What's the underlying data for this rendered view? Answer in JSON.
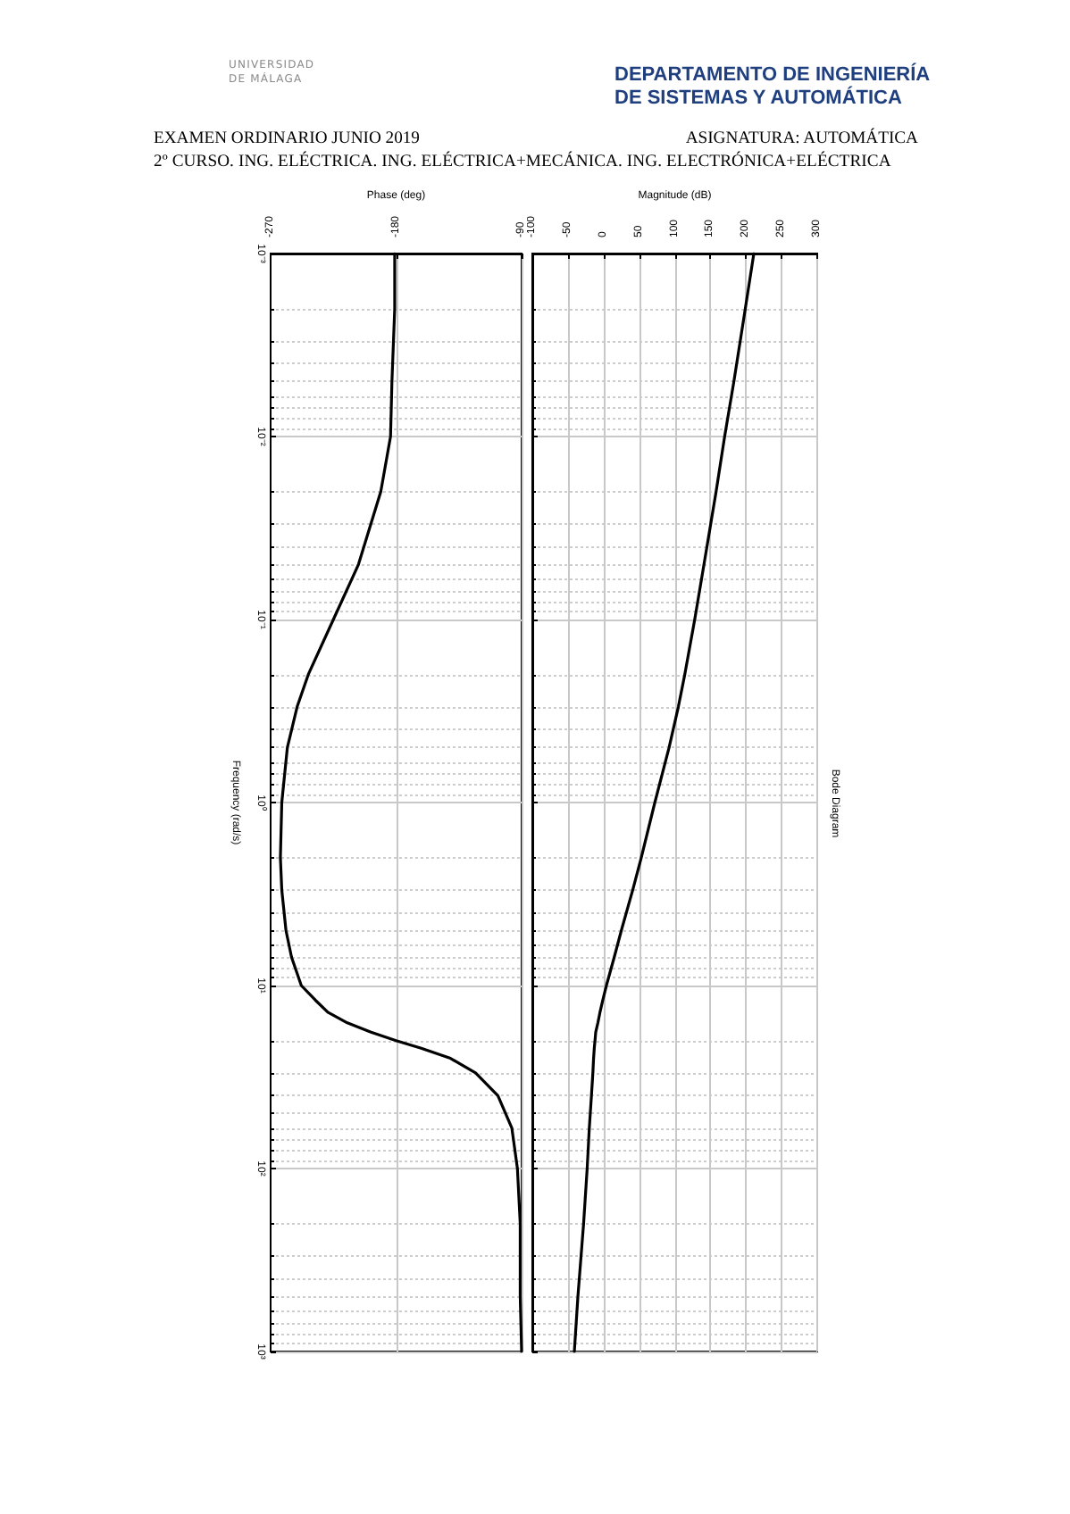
{
  "chart_data": [
    {
      "type": "line",
      "xlabel": "Phase (deg)",
      "ylabel": "Frequency (rad/s)",
      "annotations": [
        "UNIVERSIDAD DE MÁLAGA",
        "DEPARTAMENTO DE INGENIERÍA DE SISTEMAS Y AUTOMÁTICA",
        "EXAMEN ORDINARIO JUNIO 2019",
        "ASIGNATURA: AUTOMÁTICA",
        "2º CURSO. ING. ELÉCTRICA. ING. ELÉCTRICA+MECÁNICA. ING. ELECTRÓNICA+ELÉCTRICA"
      ],
      "x": [
        -181,
        -181,
        -183,
        -184,
        -191,
        -207,
        -225,
        -243,
        -251,
        -258,
        -262,
        -263,
        -262,
        -259,
        -255,
        -248,
        -238,
        -229,
        -215,
        -198,
        -180,
        -162,
        -141,
        -123,
        -107,
        -97,
        -93,
        -91,
        -91,
        -90
      ],
      "series": [
        {
          "color": "#000000",
          "values": [
            0.001,
            0.002,
            0.005,
            0.01,
            0.02,
            0.05,
            0.1,
            0.2,
            0.3,
            0.5,
            1,
            2,
            3,
            5,
            7,
            10,
            12,
            14,
            16,
            18,
            20,
            22,
            25,
            30,
            40,
            60,
            100,
            200,
            500,
            1000
          ]
        }
      ],
      "xlim": [
        -270,
        -90
      ],
      "xticks": [
        -270,
        -180,
        -90
      ],
      "ylim": [
        1000,
        0.001
      ],
      "yticks": [
        {
          "value": 0.001,
          "label": "10⁻³"
        },
        {
          "value": 0.002,
          "label": null
        },
        {
          "value": 0.003,
          "label": null
        },
        {
          "value": 0.004,
          "label": null
        },
        {
          "value": 0.005,
          "label": null
        },
        {
          "value": 0.006,
          "label": null
        },
        {
          "value": 0.007,
          "label": null
        },
        {
          "value": 0.008,
          "label": null
        },
        {
          "value": 0.009,
          "label": null
        },
        {
          "value": 0.01,
          "label": "10⁻²"
        },
        {
          "value": 0.02,
          "label": null
        },
        {
          "value": 0.03,
          "label": null
        },
        {
          "value": 0.04,
          "label": null
        },
        {
          "value": 0.05,
          "label": null
        },
        {
          "value": 0.06,
          "label": null
        },
        {
          "value": 0.07,
          "label": null
        },
        {
          "value": 0.08,
          "label": null
        },
        {
          "value": 0.09,
          "label": null
        },
        {
          "value": 0.1,
          "label": "10⁻¹"
        },
        {
          "value": 0.2,
          "label": null
        },
        {
          "value": 0.3,
          "label": null
        },
        {
          "value": 0.4,
          "label": null
        },
        {
          "value": 0.5,
          "label": null
        },
        {
          "value": 0.6,
          "label": null
        },
        {
          "value": 0.7,
          "label": null
        },
        {
          "value": 0.8,
          "label": null
        },
        {
          "value": 0.9,
          "label": null
        },
        {
          "value": 1,
          "label": "10⁰"
        },
        {
          "value": 2,
          "label": null
        },
        {
          "value": 3,
          "label": null
        },
        {
          "value": 4,
          "label": null
        },
        {
          "value": 5,
          "label": null
        },
        {
          "value": 6,
          "label": null
        },
        {
          "value": 7,
          "label": null
        },
        {
          "value": 8,
          "label": null
        },
        {
          "value": 9,
          "label": null
        },
        {
          "value": 10,
          "label": "10¹"
        },
        {
          "value": 20,
          "label": null
        },
        {
          "value": 30,
          "label": null
        },
        {
          "value": 40,
          "label": null
        },
        {
          "value": 50,
          "label": null
        },
        {
          "value": 60,
          "label": null
        },
        {
          "value": 70,
          "label": null
        },
        {
          "value": 80,
          "label": null
        },
        {
          "value": 90,
          "label": null
        },
        {
          "value": 100,
          "label": "10²"
        },
        {
          "value": 200,
          "label": null
        },
        {
          "value": 300,
          "label": null
        },
        {
          "value": 400,
          "label": null
        },
        {
          "value": 500,
          "label": null
        },
        {
          "value": 600,
          "label": null
        },
        {
          "value": 700,
          "label": null
        },
        {
          "value": 800,
          "label": null
        },
        {
          "value": 900,
          "label": null
        },
        {
          "value": 1000,
          "label": "10³"
        }
      ],
      "log": "y",
      "grid": true,
      "marker": "none",
      "line_style": "solid"
    },
    {
      "type": "line",
      "xlabel": "Magnitude (dB)",
      "annotations": [
        "Bode Diagram"
      ],
      "x": [
        211,
        199,
        183,
        170,
        158,
        141,
        128,
        114,
        105,
        92,
        72,
        53,
        41,
        25,
        15,
        4,
        -1,
        -5,
        -8,
        -11,
        -12,
        -13,
        -14,
        -15,
        -17,
        -20,
        -23,
        -28,
        -36,
        -41
      ],
      "series": [
        {
          "color": "#000000",
          "values": [
            0.001,
            0.002,
            0.005,
            0.01,
            0.02,
            0.05,
            0.1,
            0.2,
            0.3,
            0.5,
            1,
            2,
            3,
            5,
            7,
            10,
            12,
            14,
            16,
            18,
            20,
            22,
            25,
            30,
            40,
            60,
            100,
            200,
            500,
            1000
          ]
        }
      ],
      "xlim": [
        -100,
        300
      ],
      "xticks": [
        -100,
        -50,
        0,
        50,
        100,
        150,
        200,
        250,
        300
      ],
      "ylim": [
        1000,
        0.001
      ],
      "yticks": [
        {
          "value": 0.001,
          "label": null
        },
        {
          "value": 0.002,
          "label": null
        },
        {
          "value": 0.003,
          "label": null
        },
        {
          "value": 0.004,
          "label": null
        },
        {
          "value": 0.005,
          "label": null
        },
        {
          "value": 0.006,
          "label": null
        },
        {
          "value": 0.007,
          "label": null
        },
        {
          "value": 0.008,
          "label": null
        },
        {
          "value": 0.009,
          "label": null
        },
        {
          "value": 0.01,
          "label": null
        },
        {
          "value": 0.02,
          "label": null
        },
        {
          "value": 0.03,
          "label": null
        },
        {
          "value": 0.04,
          "label": null
        },
        {
          "value": 0.05,
          "label": null
        },
        {
          "value": 0.06,
          "label": null
        },
        {
          "value": 0.07,
          "label": null
        },
        {
          "value": 0.08,
          "label": null
        },
        {
          "value": 0.09,
          "label": null
        },
        {
          "value": 0.1,
          "label": null
        },
        {
          "value": 0.2,
          "label": null
        },
        {
          "value": 0.3,
          "label": null
        },
        {
          "value": 0.4,
          "label": null
        },
        {
          "value": 0.5,
          "label": null
        },
        {
          "value": 0.6,
          "label": null
        },
        {
          "value": 0.7,
          "label": null
        },
        {
          "value": 0.8,
          "label": null
        },
        {
          "value": 0.9,
          "label": null
        },
        {
          "value": 1,
          "label": null
        },
        {
          "value": 2,
          "label": null
        },
        {
          "value": 3,
          "label": null
        },
        {
          "value": 4,
          "label": null
        },
        {
          "value": 5,
          "label": null
        },
        {
          "value": 6,
          "label": null
        },
        {
          "value": 7,
          "label": null
        },
        {
          "value": 8,
          "label": null
        },
        {
          "value": 9,
          "label": null
        },
        {
          "value": 10,
          "label": null
        },
        {
          "value": 20,
          "label": null
        },
        {
          "value": 30,
          "label": null
        },
        {
          "value": 40,
          "label": null
        },
        {
          "value": 50,
          "label": null
        },
        {
          "value": 60,
          "label": null
        },
        {
          "value": 70,
          "label": null
        },
        {
          "value": 80,
          "label": null
        },
        {
          "value": 90,
          "label": null
        },
        {
          "value": 100,
          "label": null
        },
        {
          "value": 200,
          "label": null
        },
        {
          "value": 300,
          "label": null
        },
        {
          "value": 400,
          "label": null
        },
        {
          "value": 500,
          "label": null
        },
        {
          "value": 600,
          "label": null
        },
        {
          "value": 700,
          "label": null
        },
        {
          "value": 800,
          "label": null
        },
        {
          "value": 900,
          "label": null
        },
        {
          "value": 1000,
          "label": null
        }
      ],
      "log": "y",
      "grid": true,
      "tick_labels": "x",
      "marker": "none",
      "line_style": "solid"
    }
  ]
}
